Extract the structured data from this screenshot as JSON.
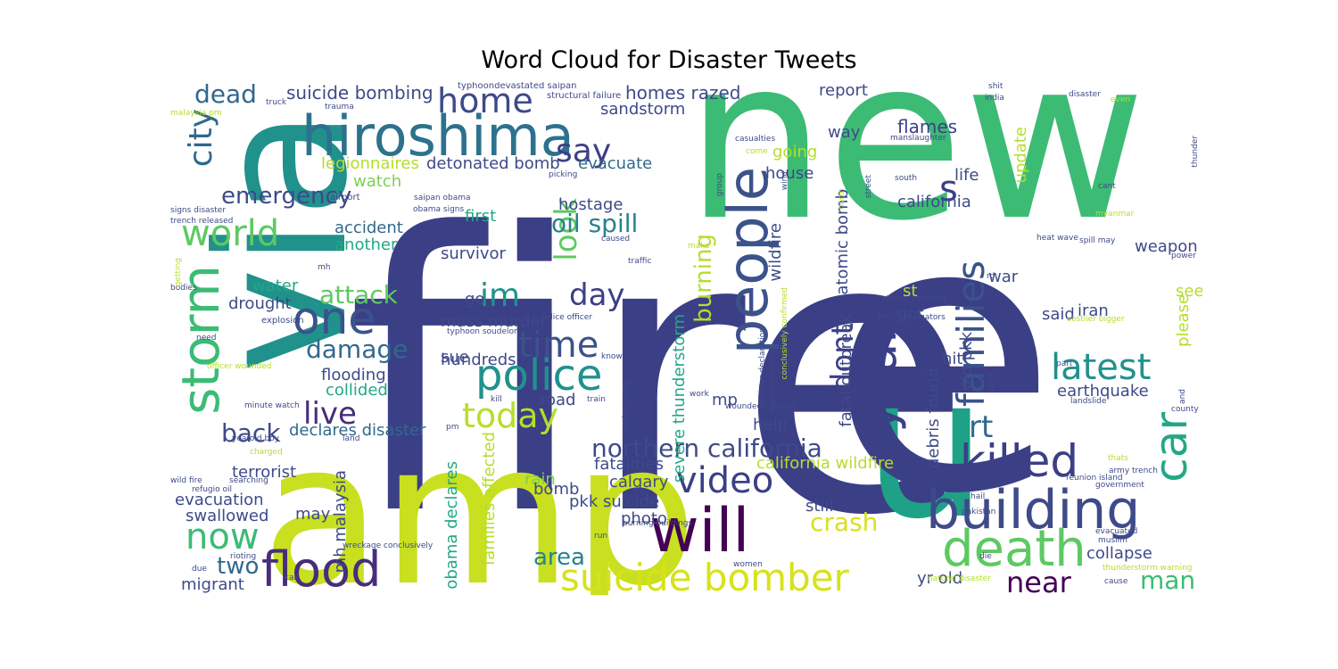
{
  "title": "Word Cloud for Disaster Tweets",
  "colors": {
    "dark_purple": "#440154",
    "indigo": "#3b3f86",
    "slate_blue": "#3e4a89",
    "blue": "#31688e",
    "teal_blue": "#26828e",
    "teal": "#21918c",
    "green_teal": "#1fa187",
    "green": "#3cbb75",
    "light_green": "#5ec962",
    "yellow_green": "#b5de2b",
    "yellow": "#d7e21a"
  },
  "words": [
    {
      "t": "fire",
      "c": "#3b3f86"
    },
    {
      "t": "new",
      "c": "#3cbb75"
    },
    {
      "t": "amp",
      "c": "#c8e020"
    },
    {
      "t": "via",
      "c": "#21918c"
    },
    {
      "t": "u",
      "c": "#1fa187"
    },
    {
      "t": "e",
      "c": "#3b3f86"
    },
    {
      "t": "hiroshima",
      "c": "#2c728e"
    },
    {
      "t": "people",
      "c": "#3b528b"
    },
    {
      "t": "year",
      "c": "#3b3f86"
    },
    {
      "t": "storm",
      "c": "#3cbb75"
    },
    {
      "t": "will",
      "c": "#440154"
    },
    {
      "t": "building",
      "c": "#3e4a89"
    },
    {
      "t": "death",
      "c": "#5ec962"
    },
    {
      "t": "flood",
      "c": "#472d7b"
    },
    {
      "t": "suicide bomber",
      "c": "#d7e21a"
    },
    {
      "t": "one",
      "c": "#3b528b"
    },
    {
      "t": "police",
      "c": "#21918c"
    },
    {
      "t": "killed",
      "c": "#3b3f86"
    },
    {
      "t": "families",
      "c": "#3b528b"
    },
    {
      "t": "car",
      "c": "#22a884"
    },
    {
      "t": "latest",
      "c": "#21918c"
    },
    {
      "t": "city",
      "c": "#31688e"
    },
    {
      "t": "video",
      "c": "#3b3f86"
    },
    {
      "t": "time",
      "c": "#3b528b"
    },
    {
      "t": "today",
      "c": "#b5de2b"
    },
    {
      "t": "world",
      "c": "#5ec962"
    },
    {
      "t": "live",
      "c": "#472d7b"
    },
    {
      "t": "now",
      "c": "#3cbb75"
    },
    {
      "t": "home",
      "c": "#3e4a89"
    },
    {
      "t": "say",
      "c": "#3b3f86"
    },
    {
      "t": "look",
      "c": "#5ec962"
    },
    {
      "t": "day",
      "c": "#3b3f86"
    },
    {
      "t": "im",
      "c": "#21918c"
    },
    {
      "t": "dont",
      "c": "#3b3f86"
    },
    {
      "t": "rt",
      "c": "#31688e"
    },
    {
      "t": "near",
      "c": "#440154"
    },
    {
      "t": "crash",
      "c": "#d7e21a"
    },
    {
      "t": "northern california",
      "c": "#3e4a89"
    },
    {
      "t": "oil spill",
      "c": "#26828e"
    },
    {
      "t": "emergency",
      "c": "#3e4a89"
    },
    {
      "t": "damage",
      "c": "#31688e"
    },
    {
      "t": "attack",
      "c": "#5ec962"
    },
    {
      "t": "back",
      "c": "#3e4a89"
    },
    {
      "t": "dead",
      "c": "#31688e"
    },
    {
      "t": "s",
      "c": "#3b3f86"
    },
    {
      "t": "man",
      "c": "#3cbb75"
    },
    {
      "t": "two",
      "c": "#31688e"
    },
    {
      "t": "area",
      "c": "#26828e"
    },
    {
      "t": "burning",
      "c": "#b5de2b"
    },
    {
      "t": "suicide bombing",
      "c": "#3e4a89"
    },
    {
      "t": "homes razed",
      "c": "#3e4a89"
    },
    {
      "t": "sandstorm",
      "c": "#3e4a89"
    },
    {
      "t": "report",
      "c": "#3e4a89"
    },
    {
      "t": "flames",
      "c": "#3b3f86"
    },
    {
      "t": "way",
      "c": "#3e4a89"
    },
    {
      "t": "going",
      "c": "#b5de2b"
    },
    {
      "t": "house",
      "c": "#3e4a89"
    },
    {
      "t": "life",
      "c": "#3e4a89"
    },
    {
      "t": "update",
      "c": "#b5de2b"
    },
    {
      "t": "california",
      "c": "#3e4a89"
    },
    {
      "t": "legionnaires",
      "c": "#b5de2b"
    },
    {
      "t": "detonated bomb",
      "c": "#3e4a89"
    },
    {
      "t": "evacuate",
      "c": "#31688e"
    },
    {
      "t": "watch",
      "c": "#7ad151"
    },
    {
      "t": "hostage",
      "c": "#3e4a89"
    },
    {
      "t": "first",
      "c": "#22a884"
    },
    {
      "t": "survivor",
      "c": "#3e4a89"
    },
    {
      "t": "accident",
      "c": "#31688e"
    },
    {
      "t": "another",
      "c": "#22a884"
    },
    {
      "t": "water",
      "c": "#22a884"
    },
    {
      "t": "drought",
      "c": "#3e4a89"
    },
    {
      "t": "go",
      "c": "#3e4a89"
    },
    {
      "t": "mass murder",
      "c": "#3e4a89"
    },
    {
      "t": "sue",
      "c": "#3e4a89"
    },
    {
      "t": "hundreds",
      "c": "#3e4a89"
    },
    {
      "t": "flooding",
      "c": "#3e4a89"
    },
    {
      "t": "collided",
      "c": "#22a884"
    },
    {
      "t": "declares disaster",
      "c": "#31688e"
    },
    {
      "t": "terrorist",
      "c": "#3e4a89"
    },
    {
      "t": "evacuation",
      "c": "#3e4a89"
    },
    {
      "t": "swallowed",
      "c": "#3e4a89"
    },
    {
      "t": "migrant",
      "c": "#3e4a89"
    },
    {
      "t": "may",
      "c": "#3e4a89"
    },
    {
      "t": "mh malaysia",
      "c": "#3e4a89"
    },
    {
      "t": "obama declares",
      "c": "#22a884"
    },
    {
      "t": "families affected",
      "c": "#b5de2b"
    },
    {
      "t": "fatalities",
      "c": "#3e4a89"
    },
    {
      "t": "calgary",
      "c": "#3e4a89"
    },
    {
      "t": "pkk suicide",
      "c": "#3e4a89"
    },
    {
      "t": "rain",
      "c": "#7ad151"
    },
    {
      "t": "bomb",
      "c": "#3e4a89"
    },
    {
      "t": "photo",
      "c": "#3e4a89"
    },
    {
      "t": "california wildfire",
      "c": "#b5de2b"
    },
    {
      "t": "still",
      "c": "#3e4a89"
    },
    {
      "t": "collapse",
      "c": "#3e4a89"
    },
    {
      "t": "yr old",
      "c": "#3e4a89"
    },
    {
      "t": "severe thunderstorm",
      "c": "#22a884"
    },
    {
      "t": "wildfire",
      "c": "#3e4a89"
    },
    {
      "t": "atomic bomb",
      "c": "#3e4a89"
    },
    {
      "t": "fatal outbreak",
      "c": "#3e4a89"
    },
    {
      "t": "debris found",
      "c": "#3e4a89"
    },
    {
      "t": "old pkk",
      "c": "#3e4a89"
    },
    {
      "t": "mp",
      "c": "#3e4a89"
    },
    {
      "t": "help",
      "c": "#3e4a89"
    },
    {
      "t": "earthquake",
      "c": "#3e4a89"
    },
    {
      "t": "hit",
      "c": "#3e4a89"
    },
    {
      "t": "got",
      "c": "#3e4a89"
    },
    {
      "t": "st",
      "c": "#b5de2b"
    },
    {
      "t": "said",
      "c": "#3e4a89"
    },
    {
      "t": "iran",
      "c": "#3e4a89"
    },
    {
      "t": "war",
      "c": "#3e4a89"
    },
    {
      "t": "weapon",
      "c": "#3e4a89"
    },
    {
      "t": "see",
      "c": "#b5de2b"
    },
    {
      "t": "please",
      "c": "#b5de2b"
    },
    {
      "t": "road",
      "c": "#3e4a89"
    },
    {
      "t": "typhoondevastated saipan",
      "c": "#3e4a89"
    },
    {
      "t": "structural failure",
      "c": "#3e4a89"
    },
    {
      "t": "malaysia pm",
      "c": "#b5de2b"
    },
    {
      "t": "truck",
      "c": "#3e4a89"
    },
    {
      "t": "trauma",
      "c": "#3e4a89"
    },
    {
      "t": "airport",
      "c": "#3e4a89"
    },
    {
      "t": "signs disaster",
      "c": "#3e4a89"
    },
    {
      "t": "trench released",
      "c": "#3e4a89"
    },
    {
      "t": "obama signs",
      "c": "#3e4a89"
    },
    {
      "t": "saipan obama",
      "c": "#3e4a89"
    },
    {
      "t": "picking",
      "c": "#3e4a89"
    },
    {
      "t": "caused",
      "c": "#3e4a89"
    },
    {
      "t": "traffic",
      "c": "#3e4a89"
    },
    {
      "t": "police officer",
      "c": "#3e4a89"
    },
    {
      "t": "typhoon soudelor",
      "c": "#3e4a89"
    },
    {
      "t": "explosion",
      "c": "#3e4a89"
    },
    {
      "t": "bodies",
      "c": "#3e4a89"
    },
    {
      "t": "getting",
      "c": "#b5de2b"
    },
    {
      "t": "mh",
      "c": "#3e4a89"
    },
    {
      "t": "need",
      "c": "#3e4a89"
    },
    {
      "t": "officer wounded",
      "c": "#b5de2b"
    },
    {
      "t": "minute watch",
      "c": "#3e4a89"
    },
    {
      "t": "yearold boy",
      "c": "#3e4a89"
    },
    {
      "t": "charged",
      "c": "#b5de2b"
    },
    {
      "t": "wild fire",
      "c": "#3e4a89"
    },
    {
      "t": "refugio oil",
      "c": "#3e4a89"
    },
    {
      "t": "searching",
      "c": "#3e4a89"
    },
    {
      "t": "land",
      "c": "#3e4a89"
    },
    {
      "t": "rioting",
      "c": "#3e4a89"
    },
    {
      "t": "wreckage conclusively",
      "c": "#3e4a89"
    },
    {
      "t": "due",
      "c": "#3e4a89"
    },
    {
      "t": "call",
      "c": "#3e4a89"
    },
    {
      "t": "women",
      "c": "#3e4a89"
    },
    {
      "t": "shit",
      "c": "#3e4a89"
    },
    {
      "t": "india",
      "c": "#3e4a89"
    },
    {
      "t": "disaster",
      "c": "#3e4a89"
    },
    {
      "t": "even",
      "c": "#b5de2b"
    },
    {
      "t": "manslaughter",
      "c": "#3e4a89"
    },
    {
      "t": "casualties",
      "c": "#3e4a89"
    },
    {
      "t": "thunder",
      "c": "#3e4a89"
    },
    {
      "t": "south",
      "c": "#3e4a89"
    },
    {
      "t": "cant",
      "c": "#3e4a89"
    },
    {
      "t": "myanmar",
      "c": "#b5de2b"
    },
    {
      "t": "heat wave",
      "c": "#3e4a89"
    },
    {
      "t": "spill may",
      "c": "#3e4a89"
    },
    {
      "t": "power",
      "c": "#3e4a89"
    },
    {
      "t": "costlier bigger",
      "c": "#b5de2b"
    },
    {
      "t": "atomic bombing",
      "c": "#3e4a89"
    },
    {
      "t": "pm investigators",
      "c": "#3e4a89"
    },
    {
      "t": "landslide",
      "c": "#3e4a89"
    },
    {
      "t": "county",
      "c": "#3e4a89"
    },
    {
      "t": "thats",
      "c": "#b5de2b"
    },
    {
      "t": "army trench",
      "c": "#3e4a89"
    },
    {
      "t": "government",
      "c": "#3e4a89"
    },
    {
      "t": "hail",
      "c": "#3e4a89"
    },
    {
      "t": "reunion island",
      "c": "#3e4a89"
    },
    {
      "t": "pakistan",
      "c": "#3e4a89"
    },
    {
      "t": "burning buildings",
      "c": "#3e4a89"
    },
    {
      "t": "muslim",
      "c": "#3e4a89"
    },
    {
      "t": "die",
      "c": "#3e4a89"
    },
    {
      "t": "evacuated",
      "c": "#3e4a89"
    },
    {
      "t": "natural disaster",
      "c": "#b5de2b"
    },
    {
      "t": "thunderstorm warning",
      "c": "#b5de2b"
    },
    {
      "t": "cause",
      "c": "#3e4a89"
    },
    {
      "t": "run",
      "c": "#3e4a89"
    },
    {
      "t": "kill",
      "c": "#3e4a89"
    },
    {
      "t": "train",
      "c": "#3e4a89"
    },
    {
      "t": "turkey army",
      "c": "#3e4a89"
    },
    {
      "t": "wounded suspect",
      "c": "#3e4a89"
    },
    {
      "t": "work",
      "c": "#3e4a89"
    },
    {
      "t": "disaster declaration",
      "c": "#3e4a89"
    },
    {
      "t": "legionnaires dise",
      "c": "#3e4a89"
    },
    {
      "t": "conclusively confirmed",
      "c": "#b5de2b"
    },
    {
      "t": "rd",
      "c": "#3e4a89"
    },
    {
      "t": "part",
      "c": "#3e4a89"
    },
    {
      "t": "know",
      "c": "#3e4a89"
    },
    {
      "t": "think",
      "c": "#3e4a89"
    },
    {
      "t": "make",
      "c": "#b5de2b"
    },
    {
      "t": "group",
      "c": "#3e4a89"
    },
    {
      "t": "wind",
      "c": "#3e4a89"
    },
    {
      "t": "come",
      "c": "#b5de2b"
    },
    {
      "t": "north",
      "c": "#b5de2b"
    },
    {
      "t": "street",
      "c": "#3e4a89"
    },
    {
      "t": "pm",
      "c": "#3e4a89"
    },
    {
      "t": "and",
      "c": "#3e4a89"
    }
  ]
}
